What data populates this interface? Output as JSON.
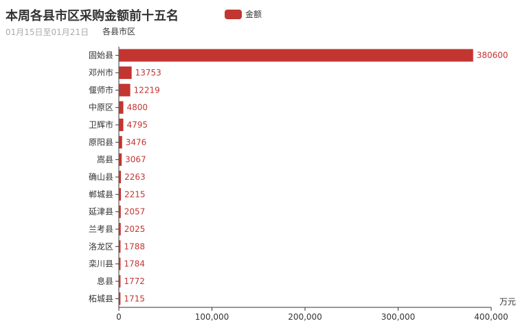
{
  "title": "本周各县市区采购金额前十五名",
  "subtitle": "01月15日至01月21日",
  "legend": {
    "items": [
      {
        "label": "金额",
        "color": "#c23531"
      }
    ]
  },
  "chart_data": {
    "type": "bar",
    "orientation": "horizontal",
    "ylabel": "各县市区",
    "xlabel": "万元",
    "xlim": [
      0,
      400000
    ],
    "xticks": [
      "0",
      "100,000",
      "200,000",
      "300,000",
      "400,000"
    ],
    "categories": [
      "固始县",
      "邓州市",
      "偃师市",
      "中原区",
      "卫辉市",
      "原阳县",
      "嵩县",
      "确山县",
      "郸城县",
      "延津县",
      "兰考县",
      "洛龙区",
      "栾川县",
      "息县",
      "柘城县"
    ],
    "series": [
      {
        "name": "金额",
        "color": "#c23531",
        "values": [
          380600,
          13753,
          12219,
          4800,
          4795,
          3476,
          3067,
          2263,
          2215,
          2057,
          2025,
          1788,
          1784,
          1772,
          1715
        ]
      }
    ],
    "grid": false,
    "legend_position": "top"
  }
}
